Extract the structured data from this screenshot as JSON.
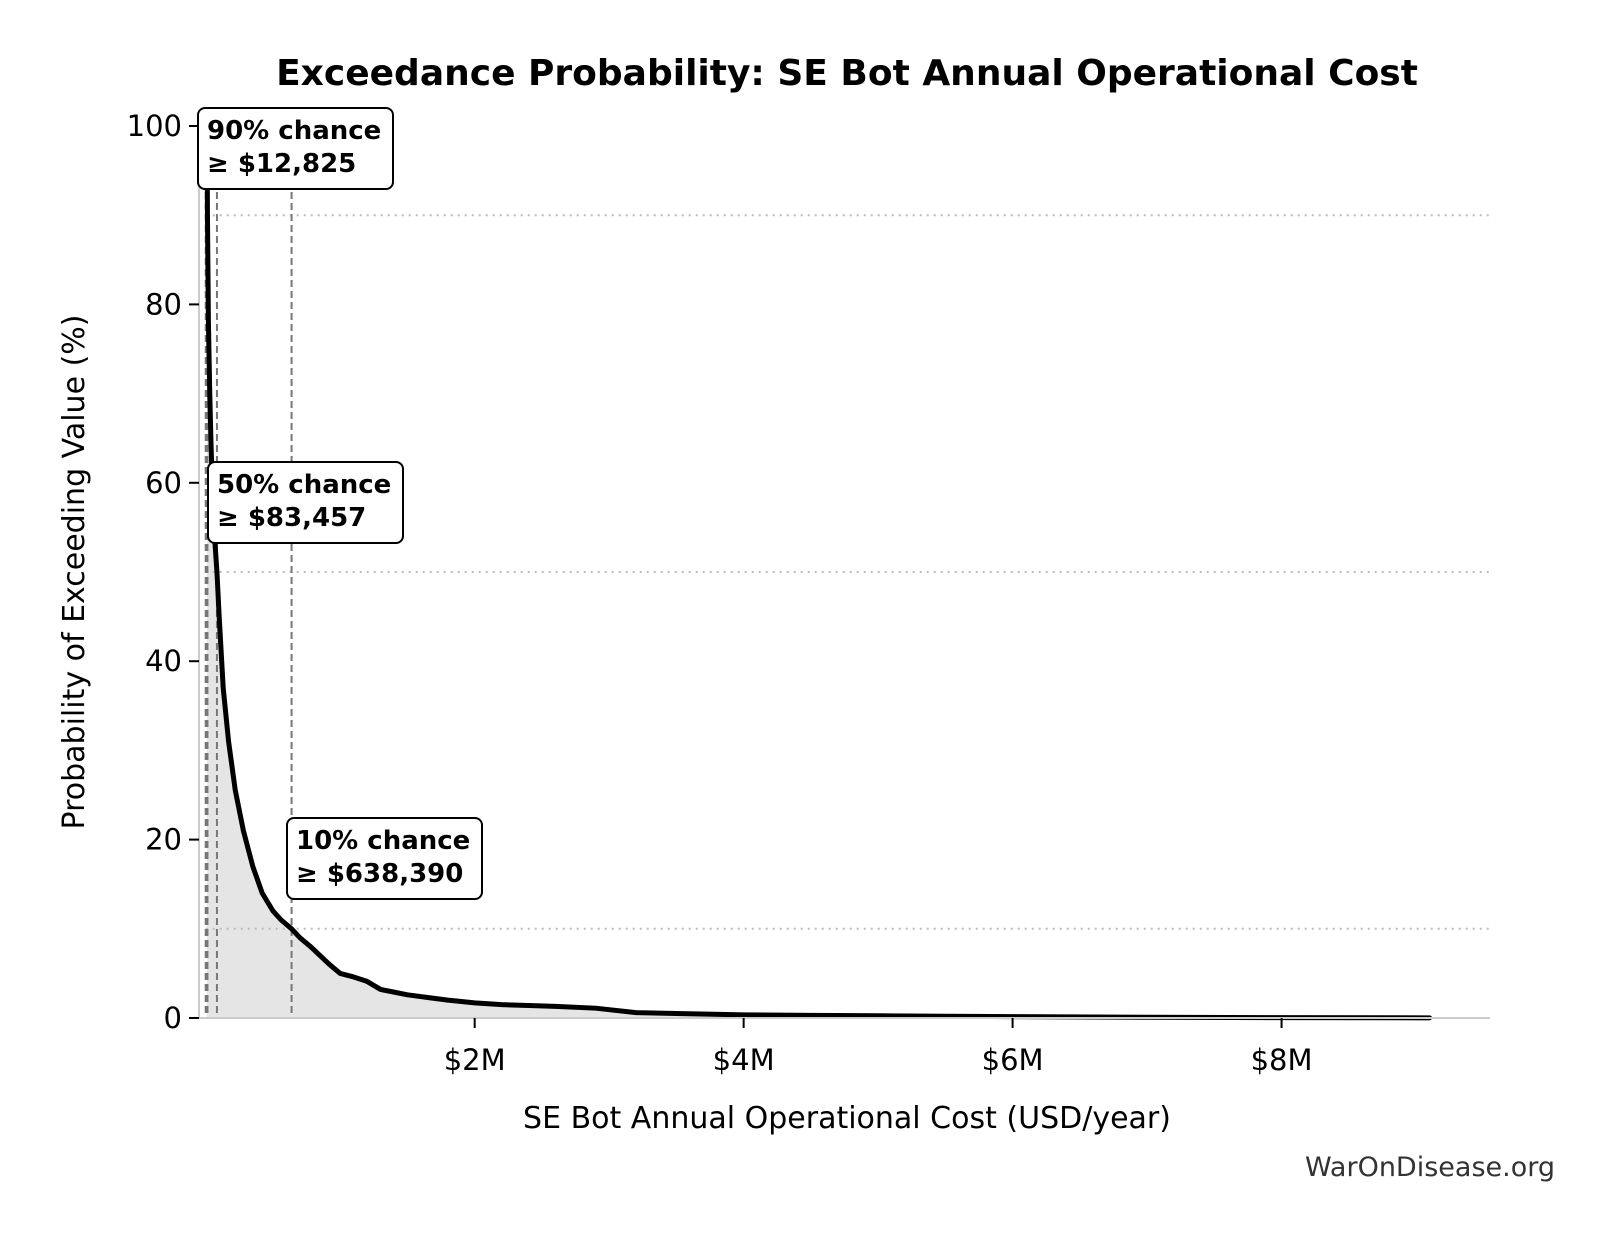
{
  "chart_data": {
    "type": "area",
    "title": "Exceedance Probability: SE Bot Annual Operational Cost",
    "xlabel": "SE Bot Annual Operational Cost (USD/year)",
    "ylabel": "Probability of Exceeding Value (%)",
    "xlim": [
      -50000,
      9550000
    ],
    "ylim": [
      0,
      100
    ],
    "x_ticks": [
      {
        "value": 2000000,
        "label": "$2M"
      },
      {
        "value": 4000000,
        "label": "$4M"
      },
      {
        "value": 6000000,
        "label": "$6M"
      },
      {
        "value": 8000000,
        "label": "$8M"
      }
    ],
    "y_ticks": [
      {
        "value": 0,
        "label": "0"
      },
      {
        "value": 20,
        "label": "20"
      },
      {
        "value": 40,
        "label": "40"
      },
      {
        "value": 60,
        "label": "60"
      },
      {
        "value": 80,
        "label": "80"
      },
      {
        "value": 100,
        "label": "100"
      }
    ],
    "grid": false,
    "curve": {
      "x": [
        10000,
        12825,
        20000,
        30000,
        40000,
        55000,
        70000,
        83457,
        100000,
        130000,
        170000,
        220000,
        280000,
        350000,
        420000,
        500000,
        560000,
        638390,
        700000,
        780000,
        850000,
        920000,
        1000000,
        1100000,
        1200000,
        1300000,
        1400000,
        1500000,
        1650000,
        1800000,
        2000000,
        2200000,
        2400000,
        2600000,
        2900000,
        3200000,
        3500000,
        4000000,
        4500000,
        5000000,
        5500000,
        6000000,
        7000000,
        8000000,
        9100000
      ],
      "y": [
        100,
        90,
        78,
        70,
        64,
        57,
        53,
        50,
        45,
        37,
        31,
        25.5,
        21,
        17,
        14,
        12,
        11,
        10,
        9,
        8,
        7,
        6,
        5,
        4.6,
        4.1,
        3.2,
        2.9,
        2.6,
        2.3,
        2,
        1.7,
        1.5,
        1.4,
        1.3,
        1.1,
        0.6,
        0.5,
        0.35,
        0.3,
        0.25,
        0.2,
        0.15,
        0.08,
        0.04,
        0.02
      ]
    },
    "reference_lines": [
      {
        "percent": 90,
        "x": 12825
      },
      {
        "percent": 50,
        "x": 83457
      },
      {
        "percent": 10,
        "x": 638390
      }
    ],
    "extra_vline_x": 0,
    "annotations": [
      {
        "line1": "90% chance",
        "line2": "≥ $12,825"
      },
      {
        "line1": "50% chance",
        "line2": "≥ $83,457"
      },
      {
        "line1": "10% chance",
        "line2": "≥ $638,390"
      }
    ],
    "colors": {
      "line": "#000000",
      "fill": "#e5e5e5",
      "ref_line": "#777777",
      "hline": "#bbbbbb",
      "axis": "#cccccc"
    }
  },
  "watermark": "WarOnDisease.org"
}
